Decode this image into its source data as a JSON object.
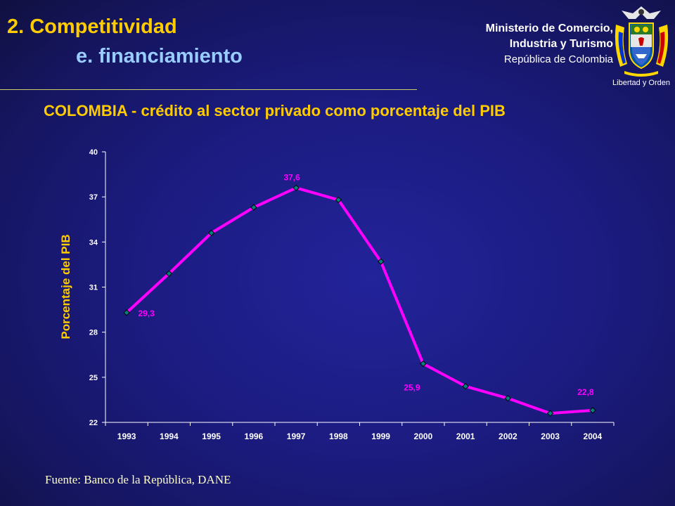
{
  "header": {
    "title": "2. Competitividad",
    "subtitle": "e. financiamiento"
  },
  "ministry": {
    "line1": "Ministerio de Comercio,",
    "line2": "Industria y Turismo",
    "line3": "República de Colombia",
    "motto": "Libertad y Orden",
    "emblem_icon": "coat-of-arms-colombia"
  },
  "chart_data": {
    "type": "line",
    "title": "COLOMBIA - crédito al sector privado como porcentaje del PIB",
    "xlabel": "",
    "ylabel": "Porcentaje del PIB",
    "categories": [
      "1993",
      "1994",
      "1995",
      "1996",
      "1997",
      "1998",
      "1999",
      "2000",
      "2001",
      "2002",
      "2003",
      "2004"
    ],
    "series": [
      {
        "values": [
          29.3,
          31.9,
          34.6,
          36.3,
          37.6,
          36.8,
          32.7,
          25.9,
          24.4,
          23.6,
          22.6,
          22.8
        ]
      }
    ],
    "data_labels": [
      {
        "index": 0,
        "text": "29,3"
      },
      {
        "index": 4,
        "text": "37,6"
      },
      {
        "index": 7,
        "text": "25,9"
      },
      {
        "index": 11,
        "text": "22,8"
      }
    ],
    "ylim": [
      22,
      40
    ],
    "yticks": [
      22,
      25,
      28,
      31,
      34,
      37,
      40
    ],
    "grid": false,
    "legend": "none",
    "colors": {
      "line": "#ff00ff",
      "marker": "#008080",
      "axis": "#ffffff",
      "label": "#ff00ff",
      "ylabel": "#ffcc00"
    }
  },
  "footer": {
    "source": "Fuente: Banco de la República, DANE"
  }
}
